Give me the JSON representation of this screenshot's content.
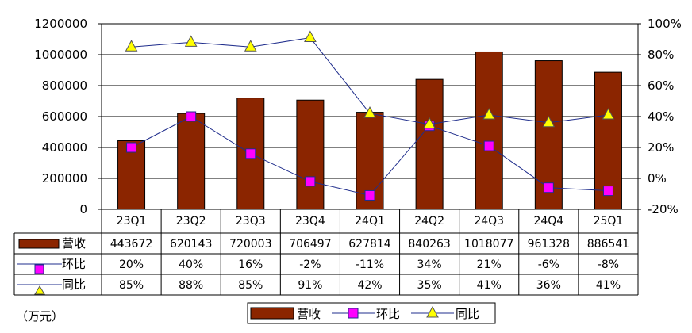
{
  "chart_data": {
    "type": "bar",
    "categories": [
      "23Q1",
      "23Q2",
      "23Q3",
      "23Q4",
      "24Q1",
      "24Q2",
      "24Q3",
      "24Q4",
      "25Q1"
    ],
    "series": [
      {
        "name": "营收",
        "type": "bar",
        "axis": "left",
        "color": "#8B2500",
        "values": [
          443672,
          620143,
          720003,
          706497,
          627814,
          840263,
          1018077,
          961328,
          886541
        ],
        "labels": [
          "443672",
          "620143",
          "720003",
          "706497",
          "627814",
          "840263",
          "1018077",
          "961328",
          "886541"
        ]
      },
      {
        "name": "环比",
        "type": "line",
        "axis": "right",
        "color": "#1F2D8C",
        "marker": "square",
        "marker_color": "#FF00FF",
        "values": [
          20,
          40,
          16,
          -2,
          -11,
          34,
          21,
          -6,
          -8
        ],
        "labels": [
          "20%",
          "40%",
          "16%",
          "-2%",
          "-11%",
          "34%",
          "21%",
          "-6%",
          "-8%"
        ]
      },
      {
        "name": "同比",
        "type": "line",
        "axis": "right",
        "color": "#1F2D8C",
        "marker": "triangle",
        "marker_color": "#FFFF00",
        "values": [
          85,
          88,
          85,
          91,
          42,
          35,
          41,
          36,
          41
        ],
        "labels": [
          "85%",
          "88%",
          "85%",
          "91%",
          "42%",
          "35%",
          "41%",
          "36%",
          "41%"
        ]
      }
    ],
    "y_left": {
      "min": 0,
      "max": 1200000,
      "ticks": [
        "0",
        "200000",
        "400000",
        "600000",
        "800000",
        "1000000",
        "1200000"
      ]
    },
    "y_right": {
      "min": -20,
      "max": 100,
      "ticks": [
        "-20%",
        "0%",
        "20%",
        "40%",
        "60%",
        "80%",
        "100%"
      ]
    },
    "grid": true,
    "legend": "bottom",
    "data_table": true,
    "unit_label": "（万元）"
  }
}
